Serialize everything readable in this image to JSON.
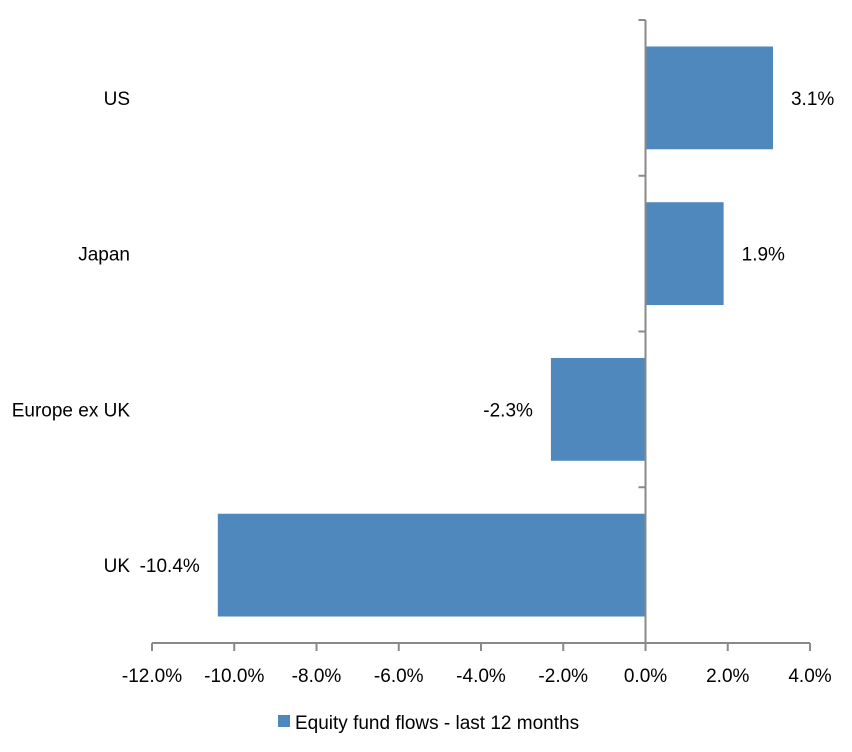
{
  "chart_data": {
    "type": "bar",
    "orientation": "horizontal",
    "categories": [
      "US",
      "Japan",
      "Europe ex UK",
      "UK"
    ],
    "series": [
      {
        "name": "Equity fund flows - last 12 months",
        "values": [
          3.1,
          1.9,
          -2.3,
          -10.4
        ],
        "color": "#4f88bd"
      }
    ],
    "data_labels": [
      "3.1%",
      "1.9%",
      "-2.3%",
      "-10.4%"
    ],
    "xlim": [
      -12,
      4
    ],
    "xticks": [
      -12,
      -10,
      -8,
      -6,
      -4,
      -2,
      0,
      2,
      4
    ],
    "xtick_labels": [
      "-12.0%",
      "-10.0%",
      "-8.0%",
      "-6.0%",
      "-4.0%",
      "-2.0%",
      "0.0%",
      "2.0%",
      "4.0%"
    ],
    "title": "",
    "xlabel": "",
    "ylabel": "",
    "grid": false,
    "legend_position": "bottom",
    "axis_color": "#898989"
  }
}
